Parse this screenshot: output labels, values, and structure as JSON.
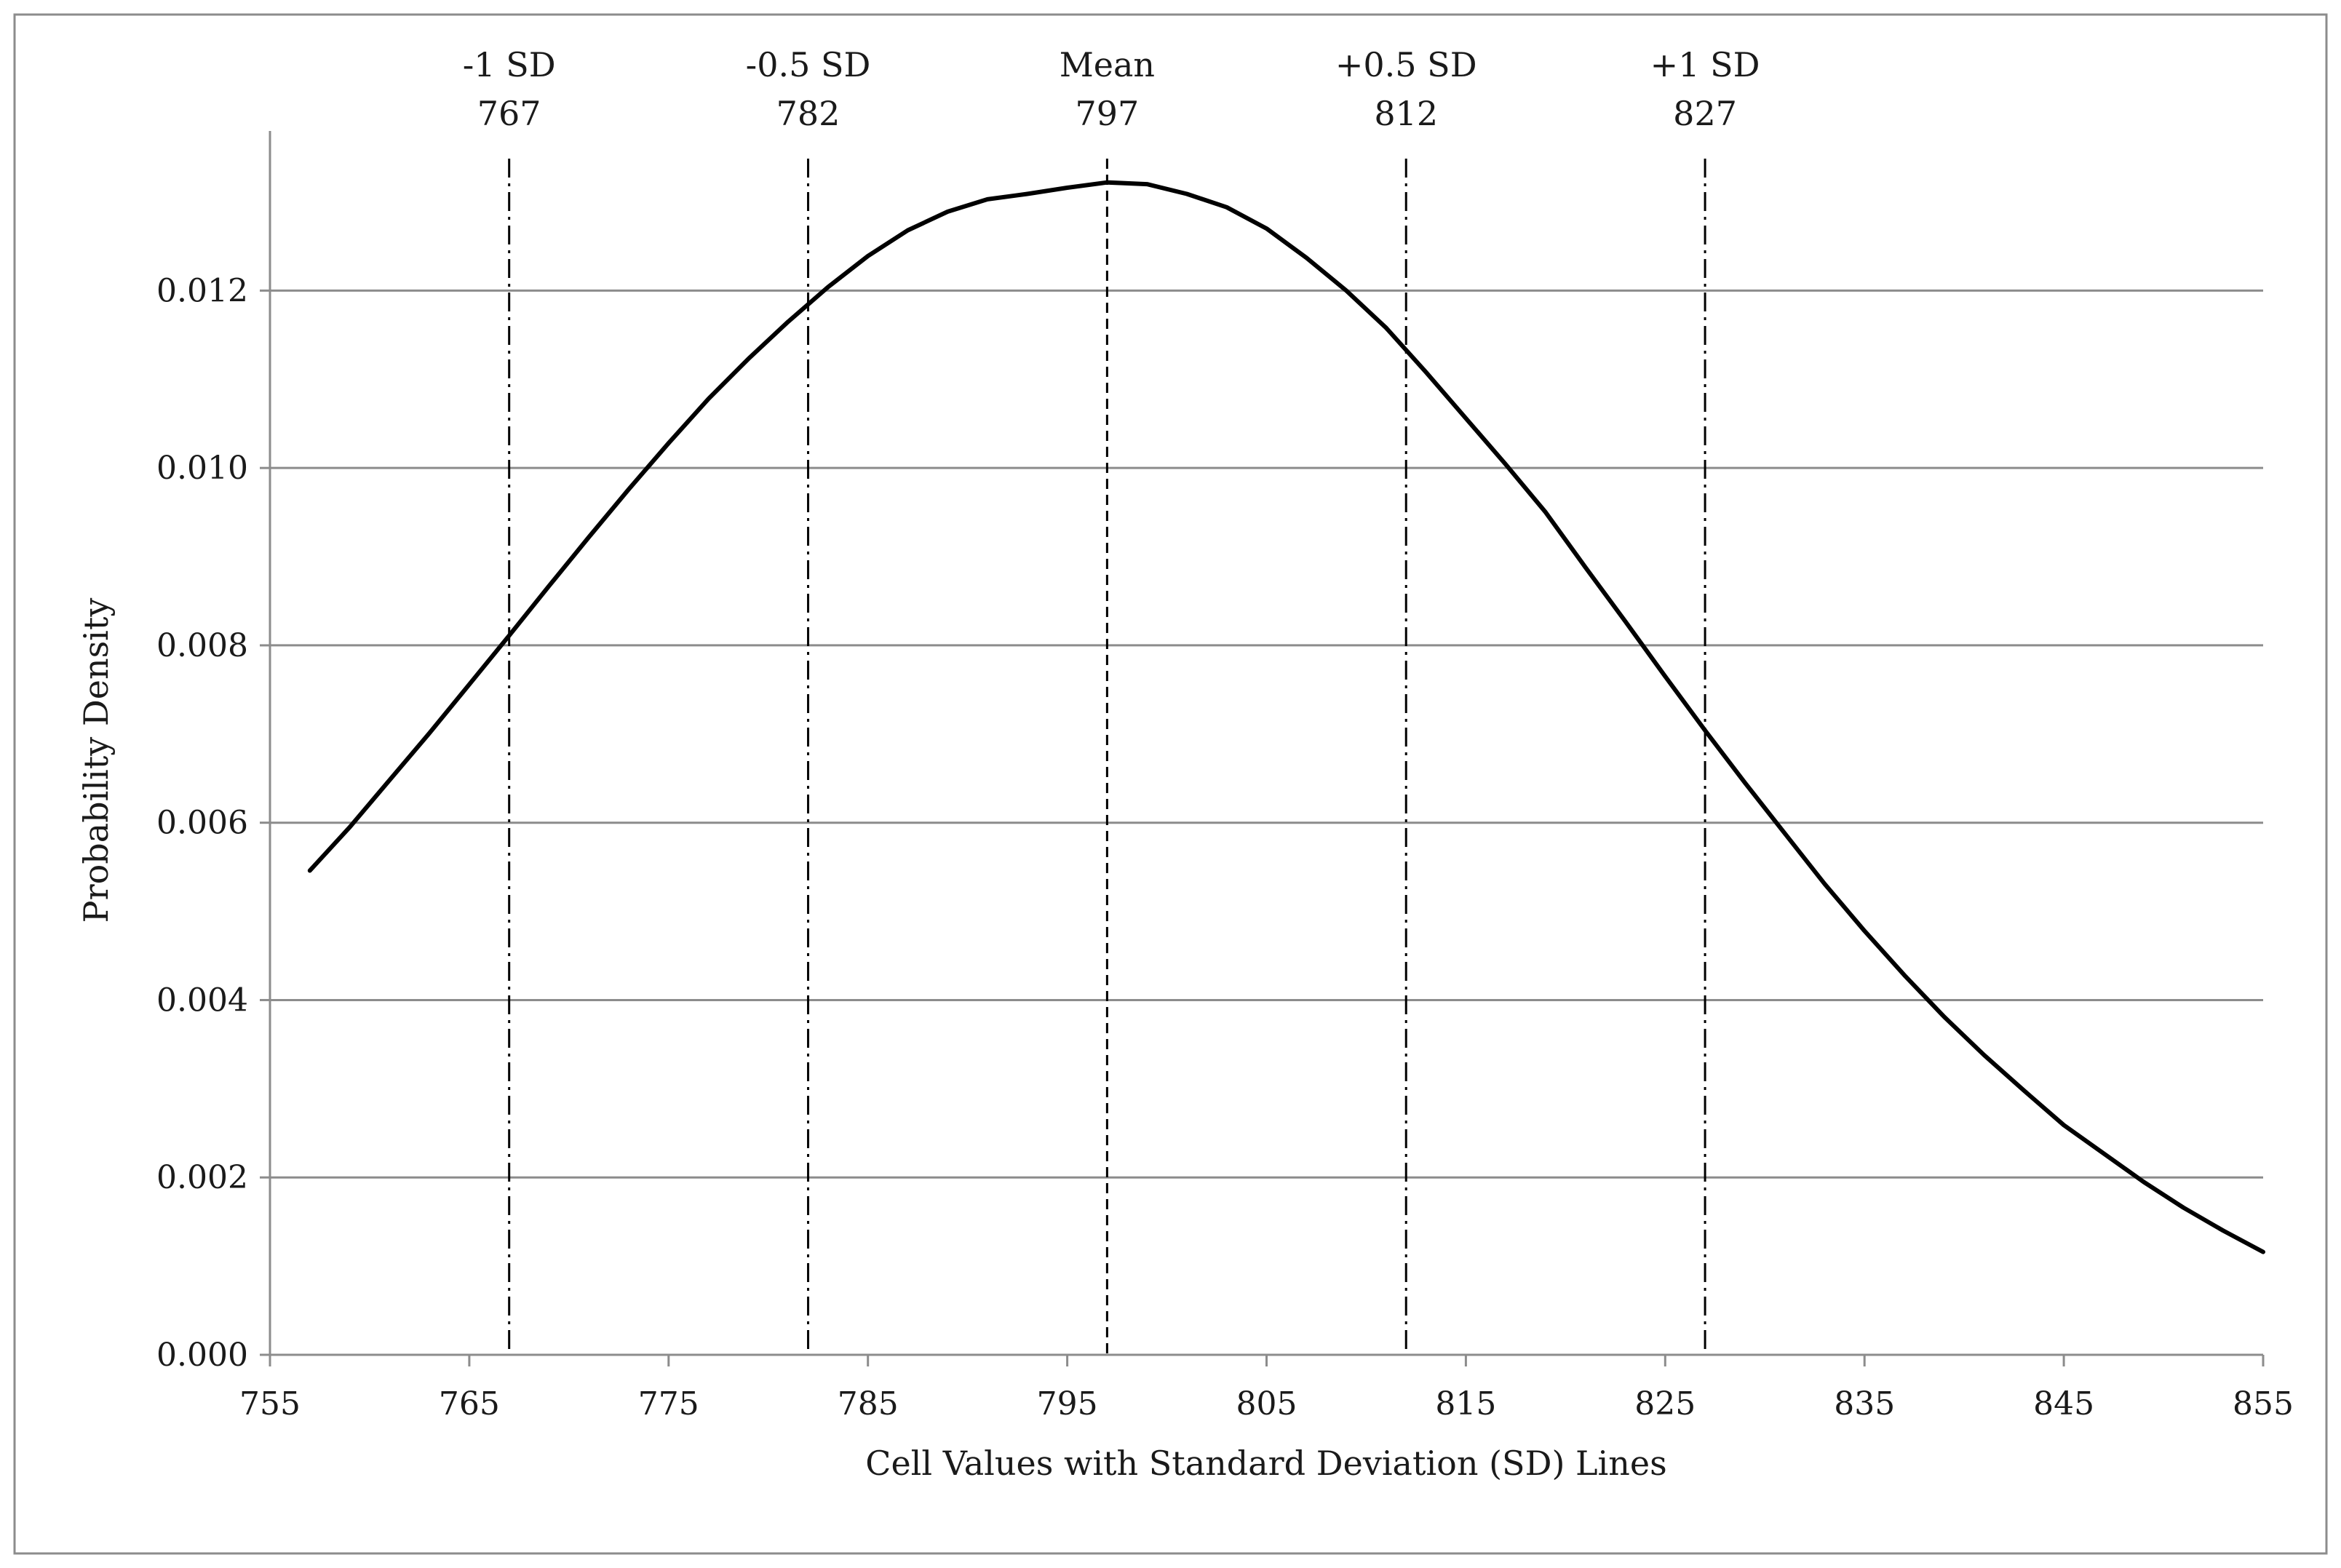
{
  "chart_data": {
    "type": "line",
    "title": "",
    "xlabel": "Cell Values with Standard Deviation (SD) Lines",
    "ylabel": "Probability Density",
    "xlim": [
      755,
      855
    ],
    "ylim": [
      0.0,
      0.0138
    ],
    "x_ticks": [
      755,
      765,
      775,
      785,
      795,
      805,
      815,
      825,
      835,
      845,
      855
    ],
    "x_tick_labels": [
      "755",
      "765",
      "775",
      "785",
      "795",
      "805",
      "815",
      "825",
      "835",
      "845",
      "855"
    ],
    "y_ticks": [
      0.0,
      0.002,
      0.004,
      0.006,
      0.008,
      0.01,
      0.012
    ],
    "y_tick_labels": [
      "0.000",
      "0.002",
      "0.004",
      "0.006",
      "0.008",
      "0.010",
      "0.012"
    ],
    "grid": true,
    "series": [
      {
        "name": "Probability Density",
        "color": "#000000",
        "x": [
          757,
          759,
          761,
          763,
          765,
          767,
          769,
          771,
          773,
          775,
          777,
          779,
          781,
          783,
          785,
          787,
          789,
          791,
          793,
          795,
          797,
          799,
          801,
          803,
          805,
          807,
          809,
          811,
          813,
          815,
          817,
          819,
          821,
          823,
          825,
          827,
          829,
          831,
          833,
          835,
          837,
          839,
          841,
          843,
          845,
          847,
          849,
          851,
          853,
          855
        ],
        "values": [
          0.00546,
          0.00595,
          0.00648,
          0.00701,
          0.00756,
          0.00811,
          0.00867,
          0.00922,
          0.00976,
          0.01028,
          0.01078,
          0.01123,
          0.01165,
          0.01204,
          0.01239,
          0.01268,
          0.01289,
          0.01303,
          0.01309,
          0.01316,
          0.01322,
          0.0132,
          0.01309,
          0.01294,
          0.0127,
          0.01237,
          0.012,
          0.01158,
          0.01108,
          0.01056,
          0.01004,
          0.0095,
          0.00888,
          0.00827,
          0.00765,
          0.00704,
          0.00645,
          0.00588,
          0.00531,
          0.00478,
          0.00428,
          0.00381,
          0.00338,
          0.00298,
          0.00259,
          0.00227,
          0.00195,
          0.00166,
          0.0014,
          0.00116
        ]
      }
    ],
    "reference_lines": [
      {
        "label": "-1 SD",
        "value_label": "767",
        "x": 767,
        "style": "dashdot"
      },
      {
        "label": "-0.5 SD",
        "value_label": "782",
        "x": 782,
        "style": "dashdot"
      },
      {
        "label": "Mean",
        "value_label": "797",
        "x": 797,
        "style": "dashed"
      },
      {
        "label": "+0.5 SD",
        "value_label": "812",
        "x": 812,
        "style": "dashdot"
      },
      {
        "label": "+1 SD",
        "value_label": "827",
        "x": 827,
        "style": "dashdot"
      }
    ]
  }
}
